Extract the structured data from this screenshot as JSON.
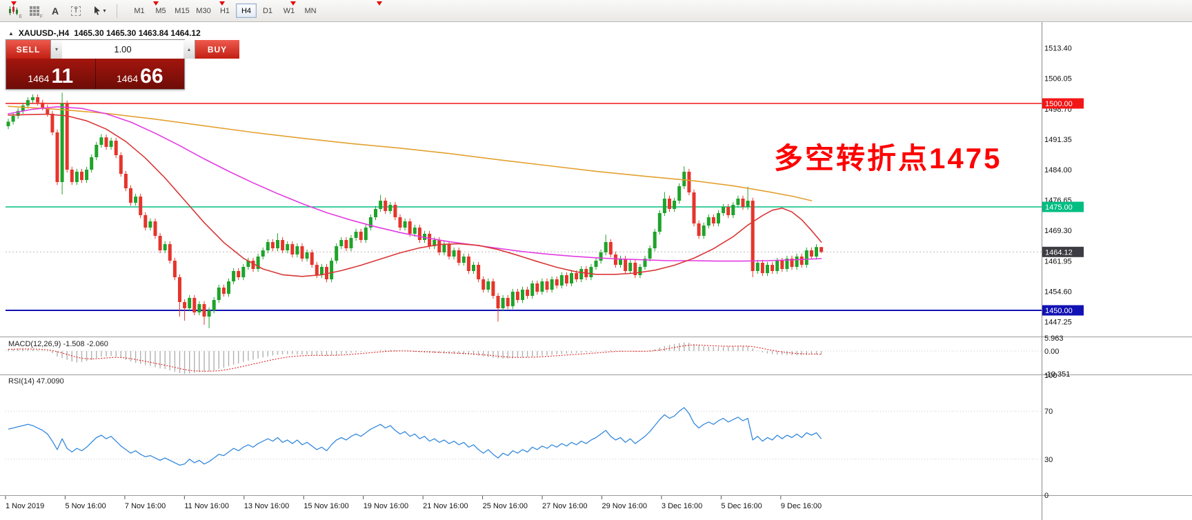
{
  "toolbar": {
    "icon_subs": [
      "E",
      "F"
    ],
    "text_tool_label": "A",
    "textbox_tool_label": "T",
    "caret_glyph": "▾",
    "timeframes": [
      "M1",
      "M5",
      "M15",
      "M30",
      "H1",
      "H4",
      "D1",
      "W1",
      "MN"
    ],
    "active_timeframe": "H4"
  },
  "chart": {
    "arrow_glyph": "▲",
    "symbol": "XAUUSD-,H4",
    "ohlc": "1465.30 1465.30 1463.84 1464.12"
  },
  "trade_panel": {
    "sell_label": "SELL",
    "buy_label": "BUY",
    "volume": "1.00",
    "spinner_up_glyph": "▴",
    "spinner_down_glyph": "▾",
    "sell_price_small": "1464",
    "sell_price_big": "11",
    "buy_price_small": "1464",
    "buy_price_big": "66"
  },
  "annotation": {
    "text": "多空转折点1475"
  },
  "price_axis": {
    "ticks": [
      "1513.40",
      "1506.05",
      "1498.70",
      "1491.35",
      "1484.00",
      "1476.65",
      "1469.30",
      "1461.95",
      "1454.60",
      "1447.25"
    ],
    "lines": [
      {
        "price": 1500.0,
        "label": "1500.00",
        "color": "#f21616",
        "width": 1.4
      },
      {
        "price": 1475.0,
        "label": "1475.00",
        "color": "#00bd82",
        "width": 1.4
      },
      {
        "price": 1450.0,
        "label": "1450.00",
        "color": "#1212b4",
        "width": 2
      }
    ],
    "current_price": {
      "price": 1464.12,
      "value": "1464.12"
    }
  },
  "time_axis": {
    "labels": [
      "1 Nov 2019",
      "5 Nov 16:00",
      "7 Nov 16:00",
      "11 Nov 16:00",
      "13 Nov 16:00",
      "15 Nov 16:00",
      "19 Nov 16:00",
      "21 Nov 16:00",
      "25 Nov 16:00",
      "27 Nov 16:00",
      "29 Nov 16:00",
      "3 Dec 16:00",
      "5 Dec 16:00",
      "9 Dec 16:00"
    ]
  },
  "macd": {
    "label": "MACD(12,26,9) -1.508 -2.060",
    "scale": [
      "5.963",
      "0.00",
      "-10.351"
    ],
    "values": [
      0.8,
      0.9,
      1.1,
      1.2,
      1.0,
      0.8,
      0.5,
      0.2,
      -0.2,
      -1.0,
      -2.5,
      -3.2,
      -4.0,
      -4.8,
      -5.2,
      -5.0,
      -4.6,
      -4.0,
      -3.2,
      -2.6,
      -2.4,
      -2.2,
      -2.6,
      -3.2,
      -4.0,
      -4.8,
      -5.4,
      -5.8,
      -6.4,
      -6.8,
      -7.4,
      -7.9,
      -8.2,
      -8.8,
      -9.4,
      -10.1,
      -10.35,
      -10.2,
      -9.9,
      -9.6,
      -9.4,
      -9.2,
      -8.8,
      -8.2,
      -7.6,
      -6.9,
      -6.2,
      -5.6,
      -5.0,
      -4.4,
      -3.9,
      -3.4,
      -2.9,
      -2.4,
      -2.0,
      -1.7,
      -1.5,
      -1.4,
      -1.4,
      -1.5,
      -1.6,
      -1.7,
      -1.8,
      -1.9,
      -2.0,
      -2.0,
      -1.9,
      -1.7,
      -1.4,
      -1.1,
      -0.8,
      -0.6,
      -0.4,
      -0.2,
      0.0,
      0.2,
      0.4,
      0.5,
      0.5,
      0.4,
      0.2,
      0.0,
      -0.2,
      -0.4,
      -0.6,
      -0.7,
      -0.8,
      -0.9,
      -1.0,
      -1.1,
      -1.2,
      -1.3,
      -1.4,
      -1.5,
      -1.7,
      -1.9,
      -2.1,
      -2.4,
      -2.7,
      -3.0,
      -3.3,
      -3.4,
      -3.4,
      -3.3,
      -3.1,
      -2.9,
      -2.7,
      -2.5,
      -2.3,
      -2.1,
      -1.9,
      -1.7,
      -1.5,
      -1.3,
      -1.2,
      -1.0,
      -0.9,
      -0.7,
      -0.6,
      -0.4,
      -0.2,
      0.0,
      0.3,
      0.4,
      0.3,
      0.2,
      0.0,
      -0.1,
      -0.2,
      -0.2,
      -0.1,
      0.3,
      0.9,
      1.6,
      2.3,
      2.8,
      3.2,
      3.6,
      3.9,
      3.8,
      3.2,
      2.6,
      2.2,
      2.0,
      1.9,
      1.9,
      2.0,
      2.1,
      2.2,
      2.3,
      2.3,
      2.2,
      1.2,
      0.2,
      -0.6,
      -1.1,
      -1.4,
      -1.6,
      -1.7,
      -1.8,
      -1.9,
      -1.9,
      -1.8,
      -1.7,
      -1.6,
      -1.55,
      -1.508
    ]
  },
  "rsi": {
    "label": "RSI(14) 47.0090",
    "scale": [
      "100",
      "70",
      "30",
      "0"
    ],
    "values": [
      55,
      56,
      57,
      58,
      59,
      58,
      56,
      54,
      51,
      45,
      38,
      47,
      39,
      36,
      39,
      37,
      40,
      44,
      48,
      50,
      47,
      49,
      45,
      41,
      38,
      35,
      37,
      34,
      32,
      33,
      31,
      29,
      31,
      29,
      27,
      25,
      26,
      30,
      27,
      29,
      26,
      28,
      31,
      34,
      33,
      36,
      39,
      37,
      40,
      42,
      40,
      43,
      45,
      47,
      45,
      48,
      44,
      46,
      43,
      46,
      42,
      44,
      41,
      38,
      40,
      37,
      42,
      46,
      48,
      46,
      49,
      51,
      49,
      52,
      55,
      57,
      59,
      56,
      58,
      54,
      51,
      53,
      49,
      51,
      47,
      49,
      45,
      47,
      44,
      46,
      43,
      45,
      42,
      44,
      40,
      42,
      38,
      35,
      38,
      34,
      31,
      35,
      33,
      37,
      35,
      38,
      36,
      40,
      38,
      41,
      39,
      42,
      40,
      43,
      41,
      44,
      42,
      45,
      43,
      46,
      48,
      51,
      54,
      49,
      46,
      48,
      44,
      47,
      43,
      46,
      49,
      53,
      58,
      63,
      67,
      64,
      66,
      70,
      73,
      68,
      60,
      56,
      59,
      61,
      59,
      62,
      64,
      61,
      63,
      65,
      62,
      64,
      46,
      49,
      45,
      48,
      46,
      50,
      47,
      50,
      48,
      51,
      48,
      52,
      50,
      52,
      47.009
    ]
  },
  "colors": {
    "up": "#1fa32a",
    "down": "#e5352b",
    "ma_orange": "#e3a02f",
    "ma_magenta": "#e23ae2",
    "ma_red": "#d93636",
    "macd_bar": "#b0b0b0",
    "macd_signal": "#e03030",
    "rsi_line": "#3388dd",
    "bid_label_bg": "#3c3c42",
    "annotation": "#ff0000"
  },
  "chart_data": {
    "type": "candlestick",
    "symbol": "XAUUSD",
    "timeframe": "H4",
    "first_open": 1494.5,
    "wick": 0.7,
    "closes": [
      1495.6,
      1497.0,
      1498.2,
      1499.5,
      1500.8,
      1501.5,
      1500.2,
      1499.0,
      1497.5,
      1493.0,
      1481.0,
      1500.0,
      1484.0,
      1481.0,
      1483.5,
      1481.5,
      1484.0,
      1487.0,
      1490.0,
      1491.8,
      1489.5,
      1491.0,
      1487.5,
      1483.0,
      1479.5,
      1476.0,
      1477.5,
      1473.0,
      1470.0,
      1471.5,
      1468.0,
      1464.5,
      1466.0,
      1462.0,
      1458.0,
      1452.0,
      1450.5,
      1453.0,
      1449.5,
      1451.5,
      1448.5,
      1450.0,
      1452.5,
      1455.5,
      1454.0,
      1457.0,
      1459.5,
      1458.0,
      1460.5,
      1462.0,
      1460.0,
      1463.0,
      1464.5,
      1466.5,
      1465.0,
      1467.0,
      1464.5,
      1466.0,
      1463.5,
      1465.5,
      1462.5,
      1464.0,
      1461.0,
      1458.5,
      1460.5,
      1457.5,
      1462.0,
      1465.5,
      1467.0,
      1465.0,
      1467.5,
      1469.0,
      1467.0,
      1470.0,
      1472.5,
      1474.5,
      1476.5,
      1474.0,
      1475.5,
      1472.5,
      1470.0,
      1471.5,
      1468.5,
      1470.0,
      1467.0,
      1468.5,
      1465.5,
      1467.0,
      1464.0,
      1466.0,
      1463.0,
      1464.5,
      1461.5,
      1463.0,
      1459.5,
      1461.0,
      1457.5,
      1455.0,
      1457.0,
      1453.5,
      1450.5,
      1453.0,
      1451.0,
      1454.5,
      1452.5,
      1455.0,
      1453.5,
      1456.5,
      1454.5,
      1457.0,
      1455.0,
      1457.5,
      1456.0,
      1458.5,
      1456.5,
      1459.0,
      1457.5,
      1460.0,
      1458.0,
      1460.5,
      1462.0,
      1464.0,
      1466.5,
      1463.5,
      1461.0,
      1462.5,
      1459.5,
      1461.5,
      1458.5,
      1460.5,
      1462.5,
      1465.0,
      1469.0,
      1473.5,
      1477.0,
      1474.5,
      1476.5,
      1480.0,
      1483.5,
      1478.5,
      1471.0,
      1468.0,
      1470.5,
      1472.5,
      1471.0,
      1473.5,
      1475.0,
      1473.0,
      1475.5,
      1477.0,
      1475.0,
      1476.5,
      1459.5,
      1461.5,
      1459.0,
      1461.0,
      1459.5,
      1462.0,
      1460.0,
      1462.5,
      1460.5,
      1463.0,
      1461.0,
      1464.5,
      1463.0,
      1465.3,
      1464.12
    ],
    "wick_overrides": {
      "11": [
        1502.6,
        1478.0
      ],
      "19": [
        1492.6,
        null
      ],
      "35": [
        null,
        1448.5
      ],
      "36": [
        null,
        1447.5
      ],
      "40": [
        null,
        1446.5
      ],
      "41": [
        null,
        1445.7
      ],
      "55": [
        1468.6,
        null
      ],
      "76": [
        1477.9,
        null
      ],
      "100": [
        null,
        1447.3
      ],
      "122": [
        1468.3,
        null
      ],
      "134": [
        1478.6,
        null
      ],
      "138": [
        1484.8,
        null
      ],
      "151": [
        1479.9,
        null
      ],
      "152": [
        null,
        1458.0
      ],
      "166": [
        1465.3,
        1463.84
      ]
    },
    "ma_orange": [
      [
        0,
        1499.3
      ],
      [
        10,
        1498.6
      ],
      [
        20,
        1497.6
      ],
      [
        30,
        1496.2
      ],
      [
        40,
        1494.6
      ],
      [
        50,
        1493.0
      ],
      [
        60,
        1491.6
      ],
      [
        70,
        1490.3
      ],
      [
        80,
        1489.2
      ],
      [
        90,
        1487.9
      ],
      [
        100,
        1486.4
      ],
      [
        110,
        1485.0
      ],
      [
        120,
        1483.6
      ],
      [
        130,
        1482.4
      ],
      [
        140,
        1481.3
      ],
      [
        148,
        1480.1
      ],
      [
        155,
        1478.7
      ],
      [
        160,
        1477.6
      ],
      [
        164,
        1476.5
      ]
    ],
    "ma_magenta": [
      [
        0,
        1497.5
      ],
      [
        5,
        1498.6
      ],
      [
        10,
        1499.2
      ],
      [
        15,
        1498.8
      ],
      [
        20,
        1497.5
      ],
      [
        25,
        1495.5
      ],
      [
        30,
        1492.8
      ],
      [
        35,
        1489.8
      ],
      [
        40,
        1486.6
      ],
      [
        45,
        1483.6
      ],
      [
        50,
        1480.8
      ],
      [
        55,
        1478.2
      ],
      [
        60,
        1475.8
      ],
      [
        65,
        1473.6
      ],
      [
        70,
        1471.8
      ],
      [
        75,
        1470.2
      ],
      [
        80,
        1468.8
      ],
      [
        85,
        1467.6
      ],
      [
        90,
        1466.6
      ],
      [
        95,
        1465.8
      ],
      [
        100,
        1465.0
      ],
      [
        105,
        1464.2
      ],
      [
        110,
        1463.6
      ],
      [
        115,
        1463.1
      ],
      [
        120,
        1462.7
      ],
      [
        125,
        1462.4
      ],
      [
        130,
        1462.2
      ],
      [
        135,
        1462.0
      ],
      [
        140,
        1462.0
      ],
      [
        145,
        1461.9
      ],
      [
        150,
        1461.9
      ],
      [
        155,
        1462.0
      ],
      [
        160,
        1462.2
      ],
      [
        166,
        1462.5
      ]
    ],
    "ma_red": [
      [
        0,
        1497.2
      ],
      [
        8,
        1497.4
      ],
      [
        12,
        1497.0
      ],
      [
        16,
        1495.8
      ],
      [
        20,
        1493.8
      ],
      [
        24,
        1490.8
      ],
      [
        28,
        1486.8
      ],
      [
        32,
        1482.0
      ],
      [
        36,
        1476.6
      ],
      [
        40,
        1471.2
      ],
      [
        44,
        1466.4
      ],
      [
        48,
        1462.6
      ],
      [
        52,
        1460.0
      ],
      [
        56,
        1458.6
      ],
      [
        60,
        1458.2
      ],
      [
        64,
        1458.6
      ],
      [
        68,
        1459.6
      ],
      [
        72,
        1460.9
      ],
      [
        76,
        1462.4
      ],
      [
        80,
        1463.9
      ],
      [
        84,
        1465.1
      ],
      [
        88,
        1465.9
      ],
      [
        92,
        1466.1
      ],
      [
        96,
        1465.7
      ],
      [
        100,
        1464.7
      ],
      [
        104,
        1463.3
      ],
      [
        108,
        1461.8
      ],
      [
        112,
        1460.4
      ],
      [
        116,
        1459.3
      ],
      [
        120,
        1458.7
      ],
      [
        124,
        1458.7
      ],
      [
        128,
        1459.0
      ],
      [
        132,
        1459.7
      ],
      [
        136,
        1460.9
      ],
      [
        140,
        1462.6
      ],
      [
        144,
        1464.9
      ],
      [
        148,
        1467.8
      ],
      [
        151,
        1470.6
      ],
      [
        154,
        1472.9
      ],
      [
        156,
        1474.2
      ],
      [
        158,
        1474.7
      ],
      [
        160,
        1473.8
      ],
      [
        162,
        1471.9
      ],
      [
        164,
        1469.3
      ],
      [
        166,
        1466.5
      ]
    ]
  }
}
